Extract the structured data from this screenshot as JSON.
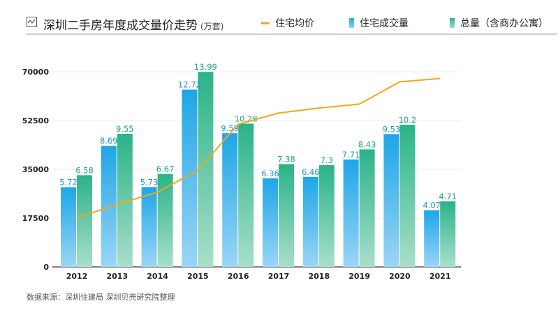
{
  "header": {
    "title": "深圳二手房年度成交量价走势",
    "unit": "(万套)"
  },
  "legend": [
    {
      "label": "住宅均价",
      "color": "#f2a818"
    },
    {
      "label": "住宅成交量",
      "color": "#29a9e6"
    },
    {
      "label": "总量（含商办公寓）",
      "color": "#2db58a"
    }
  ],
  "source": "数据来源：深圳住建局 深圳贝壳研究院整理",
  "chart_data": {
    "type": "bar",
    "categories": [
      "2012",
      "2013",
      "2014",
      "2015",
      "2016",
      "2017",
      "2018",
      "2019",
      "2020",
      "2021"
    ],
    "ylim": [
      0,
      70000
    ],
    "yticks": [
      "0",
      "17500",
      "35000",
      "52500",
      "70000"
    ],
    "grid": true,
    "legend_position": "top",
    "series": [
      {
        "name": "住宅成交量",
        "type": "bar",
        "values": [
          5.72,
          8.69,
          5.73,
          12.72,
          9.59,
          6.36,
          6.46,
          7.71,
          9.53,
          4.07
        ],
        "color": "#29a9e6"
      },
      {
        "name": "总量（含商办公寓）",
        "type": "bar",
        "values": [
          6.58,
          9.55,
          6.67,
          13.99,
          10.28,
          7.38,
          7.3,
          8.43,
          10.2,
          4.71
        ],
        "color": "#2db58a"
      },
      {
        "name": "住宅均价",
        "type": "line",
        "values": [
          17600,
          22400,
          26800,
          34700,
          51200,
          55200,
          57000,
          58400,
          66400,
          67600
        ],
        "color": "#f2a818"
      }
    ]
  }
}
